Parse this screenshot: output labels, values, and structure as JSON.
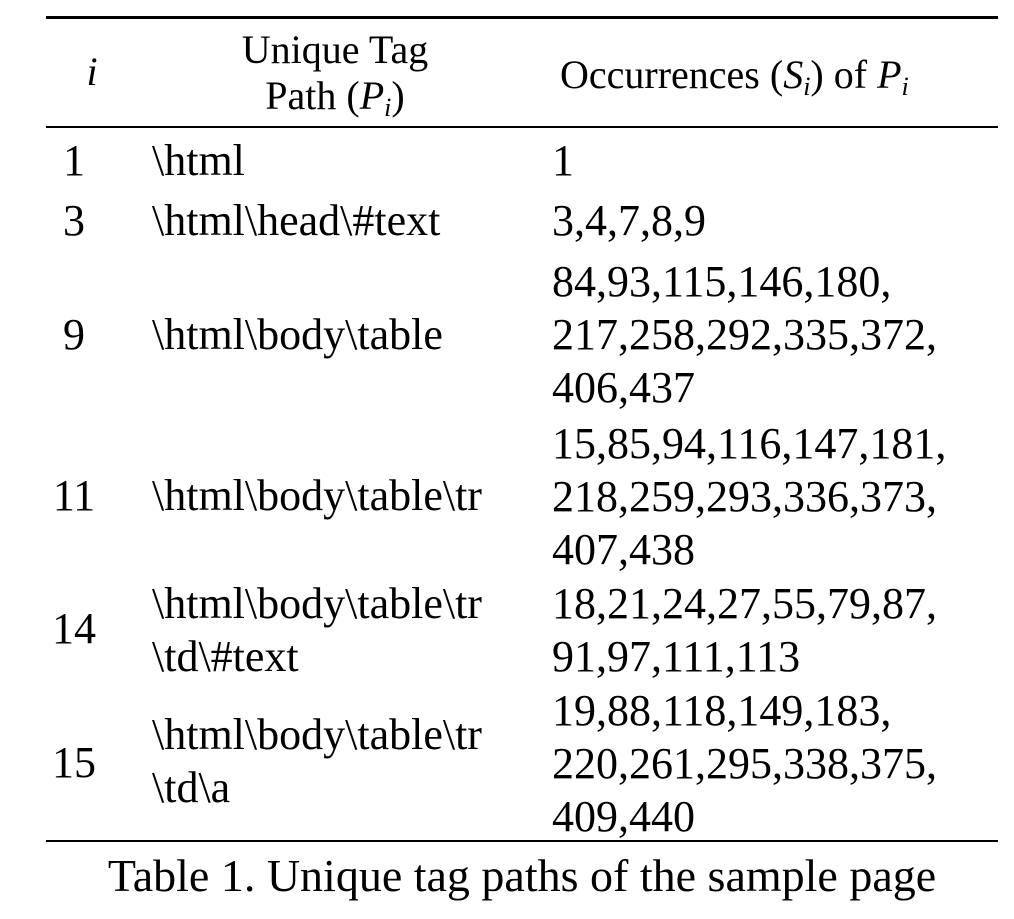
{
  "table": {
    "header": {
      "col_index": "i",
      "col_path_line1": "Unique  Tag",
      "col_path_line2_pre": "Path (",
      "col_path_line2_var": "P",
      "col_path_line2_sub": "i",
      "col_path_line2_post": ")",
      "col_occ_pre": "Occurrences (",
      "col_occ_var": "S",
      "col_occ_sub": "i",
      "col_occ_mid": ") of ",
      "col_occ_var2": "P",
      "col_occ_sub2": "i"
    },
    "rows": [
      {
        "index": "1",
        "path_lines": [
          "\\html"
        ],
        "occ_lines": [
          "1"
        ]
      },
      {
        "index": "3",
        "path_lines": [
          "\\html\\head\\#text"
        ],
        "occ_lines": [
          "3,4,7,8,9"
        ]
      },
      {
        "index": "9",
        "path_lines": [
          "\\html\\body\\table"
        ],
        "occ_lines": [
          "84,93,115,146,180,",
          "217,258,292,335,372,",
          "406,437"
        ]
      },
      {
        "index": "11",
        "path_lines": [
          "\\html\\body\\table\\tr"
        ],
        "occ_lines": [
          "15,85,94,116,147,181,",
          "218,259,293,336,373,",
          "407,438"
        ]
      },
      {
        "index": "14",
        "path_lines": [
          "\\html\\body\\table\\tr",
          "\\td\\#text"
        ],
        "occ_lines": [
          "18,21,24,27,55,79,87,",
          "91,97,111,113"
        ]
      },
      {
        "index": "15",
        "path_lines": [
          "\\html\\body\\table\\tr",
          "\\td\\a"
        ],
        "occ_lines": [
          "19,88,118,149,183,",
          "220,261,295,338,375,",
          "409,440"
        ]
      }
    ],
    "caption": "Table 1. Unique tag paths of the sample page"
  }
}
